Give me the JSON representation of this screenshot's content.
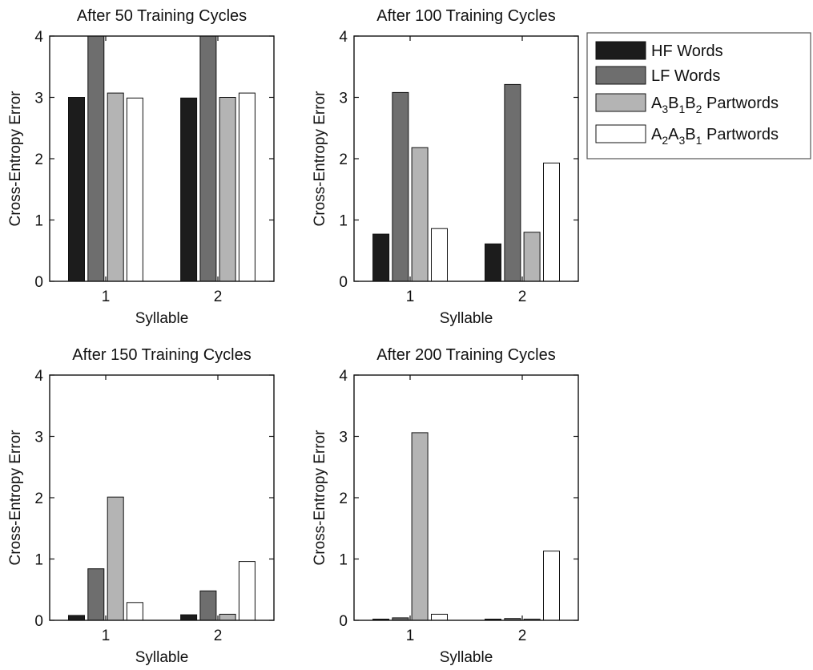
{
  "colors": {
    "HF Words": "#1c1c1c",
    "LF Words": "#6e6e6e",
    "A3B1B2 Partwords": "#b4b4b4",
    "A2A3B1 Partwords": "#ffffff",
    "axis": "#111111",
    "legend_border": "#555555"
  },
  "legend": {
    "placement": "right",
    "entries": [
      {
        "series": "HF Words",
        "parts": [
          {
            "t": "HF Words",
            "sub": false
          }
        ]
      },
      {
        "series": "LF Words",
        "parts": [
          {
            "t": "LF Words",
            "sub": false
          }
        ]
      },
      {
        "series": "A3B1B2 Partwords",
        "parts": [
          {
            "t": "A",
            "sub": false
          },
          {
            "t": "3",
            "sub": true
          },
          {
            "t": "B",
            "sub": false
          },
          {
            "t": "1",
            "sub": true
          },
          {
            "t": "B",
            "sub": false
          },
          {
            "t": "2",
            "sub": true
          },
          {
            "t": " Partwords",
            "sub": false
          }
        ]
      },
      {
        "series": "A2A3B1 Partwords",
        "parts": [
          {
            "t": "A",
            "sub": false
          },
          {
            "t": "2",
            "sub": true
          },
          {
            "t": "A",
            "sub": false
          },
          {
            "t": "3",
            "sub": true
          },
          {
            "t": "B",
            "sub": false
          },
          {
            "t": "1",
            "sub": true
          },
          {
            "t": " Partwords",
            "sub": false
          }
        ]
      }
    ]
  },
  "chart_data": [
    {
      "type": "bar",
      "title": "After 50 Training Cycles",
      "xlabel": "Syllable",
      "ylabel": "Cross-Entropy Error",
      "categories": [
        "1",
        "2"
      ],
      "ylim": [
        0,
        4
      ],
      "yticks": [
        0,
        1,
        2,
        3,
        4
      ],
      "grid": false,
      "series": [
        {
          "name": "HF Words",
          "values": [
            3.0,
            2.99
          ]
        },
        {
          "name": "LF Words",
          "values": [
            4.0,
            4.0
          ]
        },
        {
          "name": "A3B1B2 Partwords",
          "values": [
            3.07,
            3.0
          ]
        },
        {
          "name": "A2A3B1 Partwords",
          "values": [
            2.99,
            3.07
          ]
        }
      ]
    },
    {
      "type": "bar",
      "title": "After 100 Training Cycles",
      "xlabel": "Syllable",
      "ylabel": "Cross-Entropy Error",
      "categories": [
        "1",
        "2"
      ],
      "ylim": [
        0,
        4
      ],
      "yticks": [
        0,
        1,
        2,
        3,
        4
      ],
      "grid": false,
      "series": [
        {
          "name": "HF Words",
          "values": [
            0.77,
            0.61
          ]
        },
        {
          "name": "LF Words",
          "values": [
            3.08,
            3.21
          ]
        },
        {
          "name": "A3B1B2 Partwords",
          "values": [
            2.18,
            0.8
          ]
        },
        {
          "name": "A2A3B1 Partwords",
          "values": [
            0.86,
            1.93
          ]
        }
      ]
    },
    {
      "type": "bar",
      "title": "After 150 Training Cycles",
      "xlabel": "Syllable",
      "ylabel": "Cross-Entropy Error",
      "categories": [
        "1",
        "2"
      ],
      "ylim": [
        0,
        4
      ],
      "yticks": [
        0,
        1,
        2,
        3,
        4
      ],
      "grid": false,
      "series": [
        {
          "name": "HF Words",
          "values": [
            0.08,
            0.09
          ]
        },
        {
          "name": "LF Words",
          "values": [
            0.84,
            0.48
          ]
        },
        {
          "name": "A3B1B2 Partwords",
          "values": [
            2.01,
            0.1
          ]
        },
        {
          "name": "A2A3B1 Partwords",
          "values": [
            0.29,
            0.96
          ]
        }
      ]
    },
    {
      "type": "bar",
      "title": "After 200 Training Cycles",
      "xlabel": "Syllable",
      "ylabel": "Cross-Entropy Error",
      "categories": [
        "1",
        "2"
      ],
      "ylim": [
        0,
        4
      ],
      "yticks": [
        0,
        1,
        2,
        3,
        4
      ],
      "grid": false,
      "series": [
        {
          "name": "HF Words",
          "values": [
            0.02,
            0.02
          ]
        },
        {
          "name": "LF Words",
          "values": [
            0.04,
            0.03
          ]
        },
        {
          "name": "A3B1B2 Partwords",
          "values": [
            3.06,
            0.02
          ]
        },
        {
          "name": "A2A3B1 Partwords",
          "values": [
            0.1,
            1.13
          ]
        }
      ]
    }
  ]
}
